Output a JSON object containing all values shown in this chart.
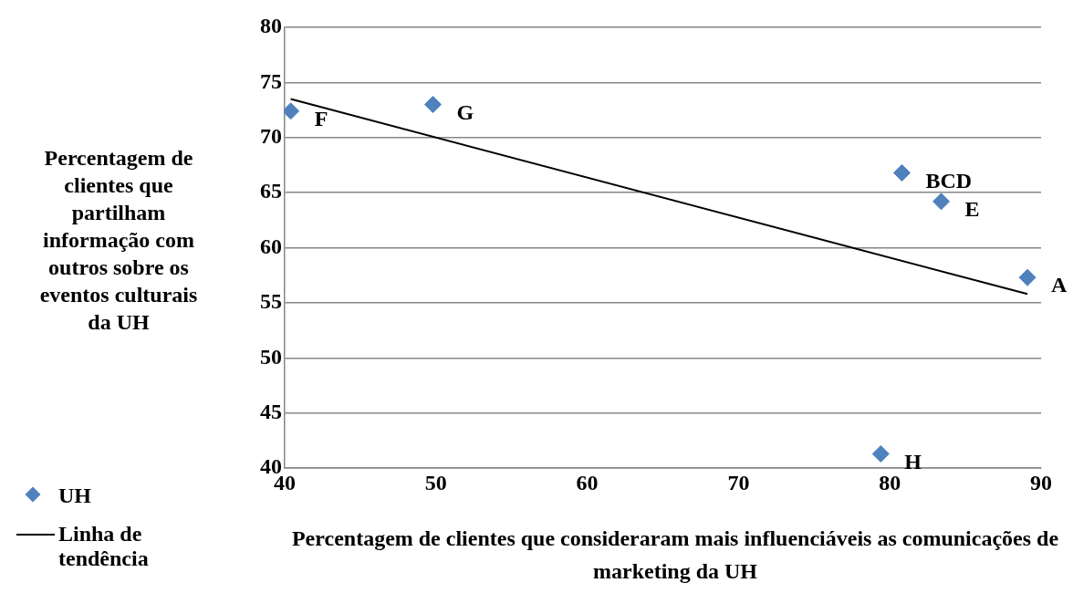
{
  "chart_data": {
    "type": "scatter",
    "xlabel": "Percentagem de clientes que consideraram mais influenciáveis as comunicações de marketing da UH",
    "ylabel": "Percentagem de clientes que partilham informação com outros sobre os eventos culturais da UH",
    "series": [
      {
        "name": "UH",
        "color": "#4f81bd",
        "marker": "diamond",
        "x": [
          89.1,
          80.8,
          83.4,
          40.4,
          49.8,
          79.4
        ],
        "values": [
          57.3,
          66.8,
          64.2,
          72.4,
          73.0,
          41.3
        ]
      },
      {
        "name": "Linha de tendência",
        "type": "line",
        "color": "#000000",
        "marker": "none",
        "x": [
          40.4,
          89.1
        ],
        "values": [
          73.5,
          55.8
        ]
      }
    ],
    "annotations": [
      {
        "text": "A",
        "x": 89.1,
        "y": 57.3
      },
      {
        "text": "BCD",
        "x": 80.8,
        "y": 66.8
      },
      {
        "text": "E",
        "x": 83.4,
        "y": 64.2
      },
      {
        "text": "F",
        "x": 40.4,
        "y": 72.4
      },
      {
        "text": "G",
        "x": 49.8,
        "y": 73.0
      },
      {
        "text": "H",
        "x": 79.4,
        "y": 41.3
      }
    ],
    "xlim": [
      40,
      90
    ],
    "xticks": [
      40,
      50,
      60,
      70,
      80,
      90
    ],
    "ylim": [
      40,
      80
    ],
    "yticks": [
      40,
      45,
      50,
      55,
      60,
      65,
      70,
      75,
      80
    ],
    "grid": "y",
    "legend": "bottom left"
  }
}
